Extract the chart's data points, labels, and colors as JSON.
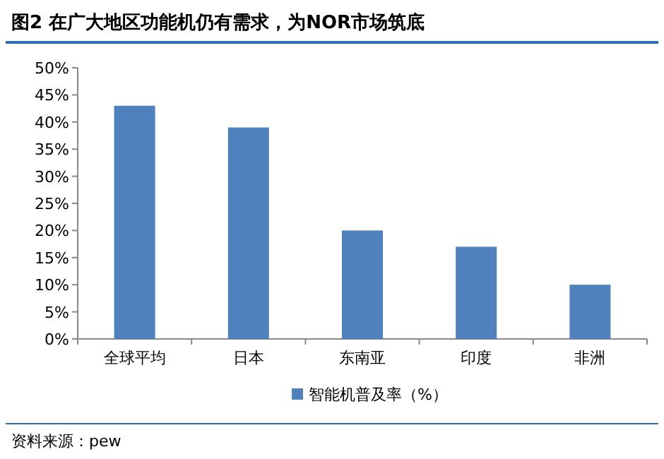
{
  "chart_data": {
    "type": "bar",
    "title": "图2 在广大地区功能机仍有需求，为NOR市场筑底",
    "categories": [
      "全球平均",
      "日本",
      "东南亚",
      "印度",
      "非洲"
    ],
    "series": [
      {
        "name": "智能机普及率（%）",
        "color": "#4f81bd",
        "values": [
          43,
          39,
          20,
          17,
          10
        ]
      }
    ],
    "ylim": [
      0,
      50
    ],
    "yticks": [
      {
        "value": 0,
        "label": "0%"
      },
      {
        "value": 5,
        "label": "5%"
      },
      {
        "value": 10,
        "label": "10%"
      },
      {
        "value": 15,
        "label": "15%"
      },
      {
        "value": 20,
        "label": "20%"
      },
      {
        "value": 25,
        "label": "25%"
      },
      {
        "value": 30,
        "label": "30%"
      },
      {
        "value": 35,
        "label": "35%"
      },
      {
        "value": 40,
        "label": "40%"
      },
      {
        "value": 45,
        "label": "45%"
      },
      {
        "value": 50,
        "label": "50%"
      }
    ],
    "grid": false,
    "legend": "bottom",
    "annotations": [
      "资料来源：pew"
    ]
  }
}
